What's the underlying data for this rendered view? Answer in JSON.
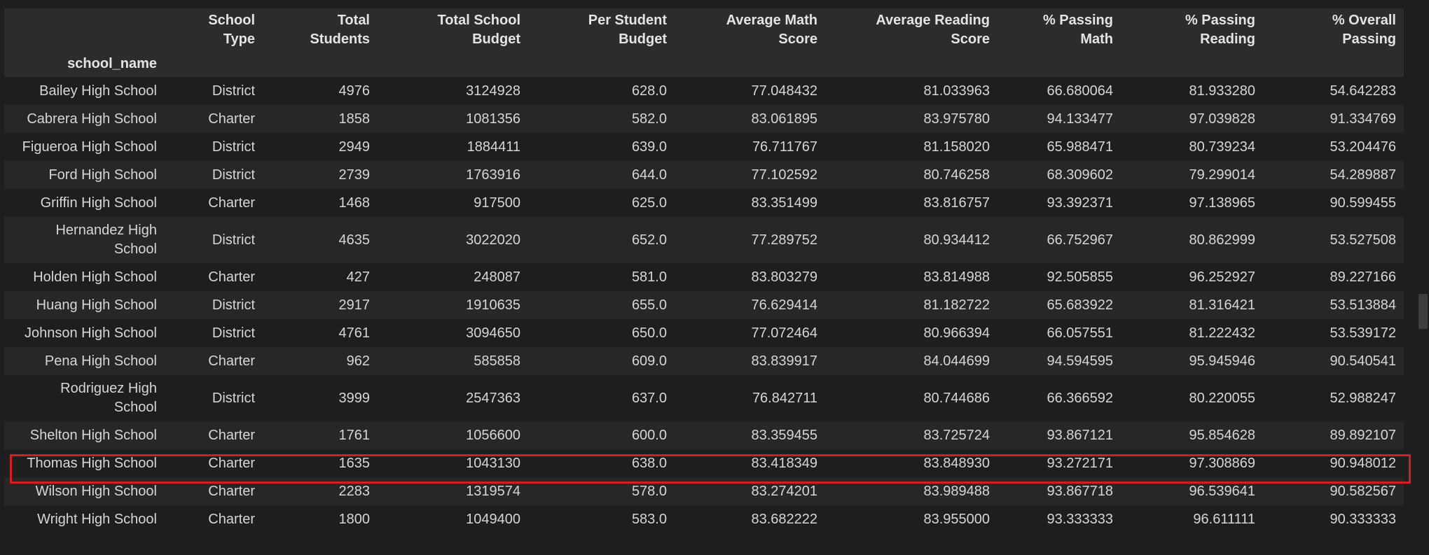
{
  "table": {
    "index_name": "school_name",
    "columns": [
      "School\nType",
      "Total\nStudents",
      "Total School\nBudget",
      "Per Student\nBudget",
      "Average Math\nScore",
      "Average Reading\nScore",
      "% Passing\nMath",
      "% Passing\nReading",
      "% Overall\nPassing"
    ],
    "rows": [
      {
        "name": "Bailey High School",
        "type": "District",
        "students": "4976",
        "budget": "3124928",
        "per_student": "628.0",
        "math": "77.048432",
        "reading": "81.033963",
        "pass_math": "66.680064",
        "pass_reading": "81.933280",
        "overall": "54.642283"
      },
      {
        "name": "Cabrera High School",
        "type": "Charter",
        "students": "1858",
        "budget": "1081356",
        "per_student": "582.0",
        "math": "83.061895",
        "reading": "83.975780",
        "pass_math": "94.133477",
        "pass_reading": "97.039828",
        "overall": "91.334769"
      },
      {
        "name": "Figueroa High School",
        "type": "District",
        "students": "2949",
        "budget": "1884411",
        "per_student": "639.0",
        "math": "76.711767",
        "reading": "81.158020",
        "pass_math": "65.988471",
        "pass_reading": "80.739234",
        "overall": "53.204476"
      },
      {
        "name": "Ford High School",
        "type": "District",
        "students": "2739",
        "budget": "1763916",
        "per_student": "644.0",
        "math": "77.102592",
        "reading": "80.746258",
        "pass_math": "68.309602",
        "pass_reading": "79.299014",
        "overall": "54.289887"
      },
      {
        "name": "Griffin High School",
        "type": "Charter",
        "students": "1468",
        "budget": "917500",
        "per_student": "625.0",
        "math": "83.351499",
        "reading": "83.816757",
        "pass_math": "93.392371",
        "pass_reading": "97.138965",
        "overall": "90.599455"
      },
      {
        "name": "Hernandez High\nSchool",
        "type": "District",
        "students": "4635",
        "budget": "3022020",
        "per_student": "652.0",
        "math": "77.289752",
        "reading": "80.934412",
        "pass_math": "66.752967",
        "pass_reading": "80.862999",
        "overall": "53.527508"
      },
      {
        "name": "Holden High School",
        "type": "Charter",
        "students": "427",
        "budget": "248087",
        "per_student": "581.0",
        "math": "83.803279",
        "reading": "83.814988",
        "pass_math": "92.505855",
        "pass_reading": "96.252927",
        "overall": "89.227166"
      },
      {
        "name": "Huang High School",
        "type": "District",
        "students": "2917",
        "budget": "1910635",
        "per_student": "655.0",
        "math": "76.629414",
        "reading": "81.182722",
        "pass_math": "65.683922",
        "pass_reading": "81.316421",
        "overall": "53.513884"
      },
      {
        "name": "Johnson High School",
        "type": "District",
        "students": "4761",
        "budget": "3094650",
        "per_student": "650.0",
        "math": "77.072464",
        "reading": "80.966394",
        "pass_math": "66.057551",
        "pass_reading": "81.222432",
        "overall": "53.539172"
      },
      {
        "name": "Pena High School",
        "type": "Charter",
        "students": "962",
        "budget": "585858",
        "per_student": "609.0",
        "math": "83.839917",
        "reading": "84.044699",
        "pass_math": "94.594595",
        "pass_reading": "95.945946",
        "overall": "90.540541"
      },
      {
        "name": "Rodriguez High\nSchool",
        "type": "District",
        "students": "3999",
        "budget": "2547363",
        "per_student": "637.0",
        "math": "76.842711",
        "reading": "80.744686",
        "pass_math": "66.366592",
        "pass_reading": "80.220055",
        "overall": "52.988247"
      },
      {
        "name": "Shelton High School",
        "type": "Charter",
        "students": "1761",
        "budget": "1056600",
        "per_student": "600.0",
        "math": "83.359455",
        "reading": "83.725724",
        "pass_math": "93.867121",
        "pass_reading": "95.854628",
        "overall": "89.892107"
      },
      {
        "name": "Thomas High School",
        "type": "Charter",
        "students": "1635",
        "budget": "1043130",
        "per_student": "638.0",
        "math": "83.418349",
        "reading": "83.848930",
        "pass_math": "93.272171",
        "pass_reading": "97.308869",
        "overall": "90.948012",
        "highlighted": true
      },
      {
        "name": "Wilson High School",
        "type": "Charter",
        "students": "2283",
        "budget": "1319574",
        "per_student": "578.0",
        "math": "83.274201",
        "reading": "83.989488",
        "pass_math": "93.867718",
        "pass_reading": "96.539641",
        "overall": "90.582567"
      },
      {
        "name": "Wright High School",
        "type": "Charter",
        "students": "1800",
        "budget": "1049400",
        "per_student": "583.0",
        "math": "83.682222",
        "reading": "83.955000",
        "pass_math": "93.333333",
        "pass_reading": "96.611111",
        "overall": "90.333333"
      }
    ]
  },
  "colors": {
    "highlight_border": "#d51e23",
    "background": "#1e1e1e",
    "header_bg": "#2c2c2c"
  }
}
